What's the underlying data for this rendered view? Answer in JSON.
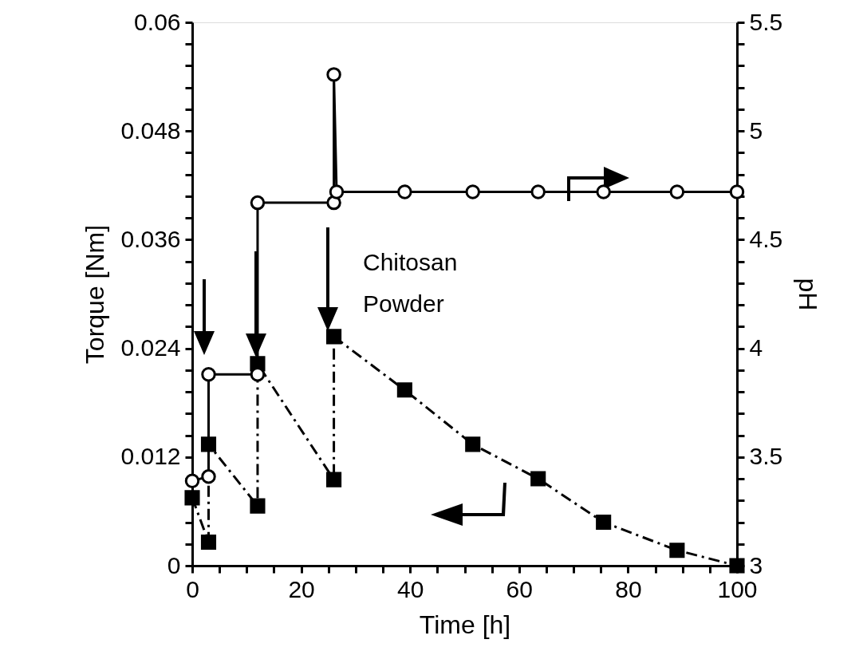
{
  "chart_data": {
    "type": "line",
    "xlabel": "Time [h]",
    "ylabel": "Torque [Nm]",
    "y2label": "pH",
    "annotations": [
      "Chitosan Powder"
    ],
    "xlim": [
      0,
      100
    ],
    "ylim": [
      0,
      0.06
    ],
    "y2lim": [
      3,
      5.5
    ],
    "grid": false,
    "xticks": [
      0,
      {
        "value": 5,
        "label": null
      },
      {
        "value": 10,
        "label": null
      },
      {
        "value": 15,
        "label": null
      },
      20,
      {
        "value": 25,
        "label": null
      },
      {
        "value": 30,
        "label": null
      },
      {
        "value": 35,
        "label": null
      },
      40,
      {
        "value": 45,
        "label": null
      },
      {
        "value": 50,
        "label": null
      },
      {
        "value": 55,
        "label": null
      },
      60,
      {
        "value": 65,
        "label": null
      },
      {
        "value": 70,
        "label": null
      },
      {
        "value": 75,
        "label": null
      },
      80,
      {
        "value": 85,
        "label": null
      },
      {
        "value": 90,
        "label": null
      },
      {
        "value": 95,
        "label": null
      },
      100
    ],
    "yticks": [
      0,
      {
        "value": 0.0024,
        "label": null
      },
      {
        "value": 0.0048,
        "label": null
      },
      {
        "value": 0.0072,
        "label": null
      },
      {
        "value": 0.0096,
        "label": null
      },
      0.012,
      {
        "value": 0.0144,
        "label": null
      },
      {
        "value": 0.0168,
        "label": null
      },
      {
        "value": 0.0192,
        "label": null
      },
      {
        "value": 0.0216,
        "label": null
      },
      0.024,
      {
        "value": 0.0264,
        "label": null
      },
      {
        "value": 0.0288,
        "label": null
      },
      {
        "value": 0.0312,
        "label": null
      },
      {
        "value": 0.0336,
        "label": null
      },
      0.036,
      {
        "value": 0.0384,
        "label": null
      },
      {
        "value": 0.0408,
        "label": null
      },
      {
        "value": 0.0432,
        "label": null
      },
      {
        "value": 0.0456,
        "label": null
      },
      0.048,
      {
        "value": 0.0504,
        "label": null
      },
      {
        "value": 0.0528,
        "label": null
      },
      {
        "value": 0.0552,
        "label": null
      },
      {
        "value": 0.0576,
        "label": null
      },
      0.06
    ],
    "y2ticks": [
      3,
      {
        "value": 3.1,
        "label": null
      },
      {
        "value": 3.2,
        "label": null
      },
      {
        "value": 3.3,
        "label": null
      },
      {
        "value": 3.4,
        "label": null
      },
      3.5,
      {
        "value": 3.6,
        "label": null
      },
      {
        "value": 3.7,
        "label": null
      },
      {
        "value": 3.8,
        "label": null
      },
      {
        "value": 3.9,
        "label": null
      },
      4,
      {
        "value": 4.1,
        "label": null
      },
      {
        "value": 4.2,
        "label": null
      },
      {
        "value": 4.3,
        "label": null
      },
      {
        "value": 4.4,
        "label": null
      },
      4.5,
      {
        "value": 4.6,
        "label": null
      },
      {
        "value": 4.7,
        "label": null
      },
      {
        "value": 4.8,
        "label": null
      },
      {
        "value": 4.9,
        "label": null
      },
      5,
      {
        "value": 5.1,
        "label": null
      },
      {
        "value": 5.2,
        "label": null
      },
      {
        "value": 5.3,
        "label": null
      },
      {
        "value": 5.4,
        "label": null
      },
      5.5
    ],
    "series": [
      {
        "color": "#000000",
        "marker": "square",
        "line_style": "dashed",
        "x": [
          0,
          3,
          3,
          12,
          12,
          26,
          26,
          39,
          51.5,
          63.5,
          75.5,
          89,
          100
        ],
        "values": [
          0.0075,
          0.0026,
          0.0134,
          0.0066,
          0.0223,
          0.0095,
          0.0253,
          0.0194,
          0.0134,
          0.0096,
          0.0048,
          0.0017,
          0
        ]
      },
      {
        "color": "#000000",
        "marker": "circle",
        "line_style": "solid",
        "axis": "y2",
        "x": [
          0,
          3,
          3,
          12,
          12,
          26,
          26,
          26.5,
          39,
          51.5,
          63.5,
          75.5,
          89,
          100
        ],
        "values": [
          3.39,
          3.41,
          3.88,
          3.88,
          4.67,
          4.67,
          5.26,
          4.72,
          4.72,
          4.72,
          4.72,
          4.72,
          4.72,
          4.72
        ]
      }
    ]
  }
}
